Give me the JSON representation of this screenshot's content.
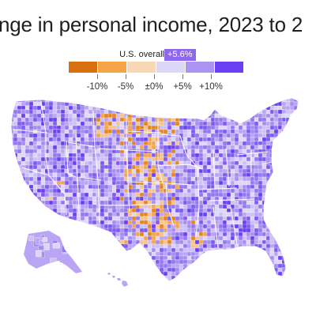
{
  "title": "nge in personal income, 2023 to 2",
  "overall": {
    "label": "U.S. overall",
    "value": "+5.6%"
  },
  "legend": {
    "colors": [
      "#d9700f",
      "#f4a447",
      "#f8d8b4",
      "#ddd7f7",
      "#aa93f2",
      "#6b3ff3"
    ],
    "ticks": [
      "-10%",
      "-5%",
      "±0%",
      "+5%",
      "+10%"
    ]
  },
  "map": {
    "land_color": "#b9a5f4",
    "county_palette": [
      "#cdbff7",
      "#b9a5f4",
      "#a58ef1",
      "#9577ef",
      "#ddd7f7",
      "#7e5bee"
    ],
    "decline_colors": [
      "#e4861f",
      "#f1a655",
      "#f6c48c"
    ],
    "state_border_color": "#ffffff"
  }
}
